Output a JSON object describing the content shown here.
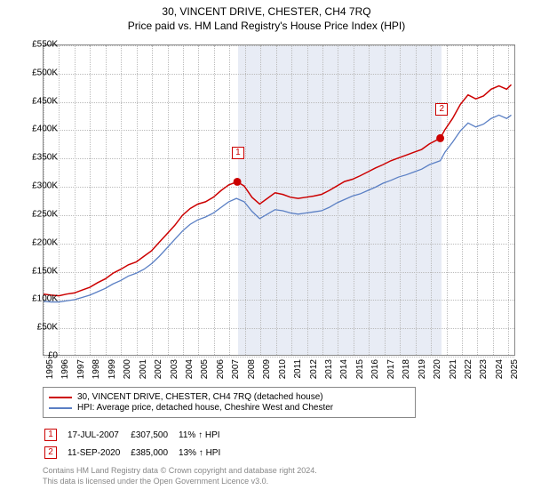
{
  "title": "30, VINCENT DRIVE, CHESTER, CH4 7RQ",
  "subtitle": "Price paid vs. HM Land Registry's House Price Index (HPI)",
  "chart": {
    "type": "line",
    "background_color": "#ffffff",
    "grid_color": "#bbbbbb",
    "border_color": "#888888",
    "shaded_band_color": "#e8ecf5",
    "xlim": [
      1995,
      2025.5
    ],
    "ylim": [
      0,
      550
    ],
    "y_ticks": [
      0,
      50,
      100,
      150,
      200,
      250,
      300,
      350,
      400,
      450,
      500,
      550
    ],
    "y_tick_labels": [
      "£0",
      "£50K",
      "£100K",
      "£150K",
      "£200K",
      "£250K",
      "£300K",
      "£350K",
      "£400K",
      "£450K",
      "£500K",
      "£550K"
    ],
    "x_ticks": [
      1995,
      1996,
      1997,
      1998,
      1999,
      2000,
      2001,
      2002,
      2003,
      2004,
      2005,
      2006,
      2007,
      2008,
      2009,
      2010,
      2011,
      2012,
      2013,
      2014,
      2015,
      2016,
      2017,
      2018,
      2019,
      2020,
      2021,
      2022,
      2023,
      2024,
      2025
    ],
    "shaded_band": {
      "x_from": 2007.55,
      "x_to": 2020.7
    },
    "series": [
      {
        "name": "property",
        "label": "30, VINCENT DRIVE, CHESTER, CH4 7RQ (detached house)",
        "color": "#cc0000",
        "line_width": 1.5,
        "points": [
          [
            1995,
            108
          ],
          [
            1995.5,
            106
          ],
          [
            1996,
            105
          ],
          [
            1996.5,
            108
          ],
          [
            1997,
            110
          ],
          [
            1997.5,
            115
          ],
          [
            1998,
            120
          ],
          [
            1998.5,
            128
          ],
          [
            1999,
            135
          ],
          [
            1999.5,
            145
          ],
          [
            2000,
            152
          ],
          [
            2000.5,
            160
          ],
          [
            2001,
            165
          ],
          [
            2001.5,
            175
          ],
          [
            2002,
            185
          ],
          [
            2002.5,
            200
          ],
          [
            2003,
            215
          ],
          [
            2003.5,
            230
          ],
          [
            2004,
            248
          ],
          [
            2004.5,
            260
          ],
          [
            2005,
            268
          ],
          [
            2005.5,
            272
          ],
          [
            2006,
            280
          ],
          [
            2006.5,
            292
          ],
          [
            2007,
            302
          ],
          [
            2007.55,
            307.5
          ],
          [
            2008,
            300
          ],
          [
            2008.5,
            280
          ],
          [
            2009,
            268
          ],
          [
            2009.5,
            278
          ],
          [
            2010,
            288
          ],
          [
            2010.5,
            285
          ],
          [
            2011,
            280
          ],
          [
            2011.5,
            278
          ],
          [
            2012,
            280
          ],
          [
            2012.5,
            282
          ],
          [
            2013,
            285
          ],
          [
            2013.5,
            292
          ],
          [
            2014,
            300
          ],
          [
            2014.5,
            308
          ],
          [
            2015,
            312
          ],
          [
            2015.5,
            318
          ],
          [
            2016,
            325
          ],
          [
            2016.5,
            332
          ],
          [
            2017,
            338
          ],
          [
            2017.5,
            345
          ],
          [
            2018,
            350
          ],
          [
            2018.5,
            355
          ],
          [
            2019,
            360
          ],
          [
            2019.5,
            365
          ],
          [
            2020,
            375
          ],
          [
            2020.7,
            385
          ],
          [
            2021,
            400
          ],
          [
            2021.5,
            420
          ],
          [
            2022,
            445
          ],
          [
            2022.5,
            462
          ],
          [
            2023,
            455
          ],
          [
            2023.5,
            460
          ],
          [
            2024,
            472
          ],
          [
            2024.5,
            478
          ],
          [
            2025,
            472
          ],
          [
            2025.3,
            480
          ]
        ]
      },
      {
        "name": "hpi",
        "label": "HPI: Average price, detached house, Cheshire West and Chester",
        "color": "#5a7fc4",
        "line_width": 1.3,
        "points": [
          [
            1995,
            95
          ],
          [
            1995.5,
            94
          ],
          [
            1996,
            94
          ],
          [
            1996.5,
            96
          ],
          [
            1997,
            98
          ],
          [
            1997.5,
            102
          ],
          [
            1998,
            106
          ],
          [
            1998.5,
            112
          ],
          [
            1999,
            118
          ],
          [
            1999.5,
            126
          ],
          [
            2000,
            132
          ],
          [
            2000.5,
            140
          ],
          [
            2001,
            145
          ],
          [
            2001.5,
            152
          ],
          [
            2002,
            162
          ],
          [
            2002.5,
            175
          ],
          [
            2003,
            190
          ],
          [
            2003.5,
            205
          ],
          [
            2004,
            220
          ],
          [
            2004.5,
            232
          ],
          [
            2005,
            240
          ],
          [
            2005.5,
            245
          ],
          [
            2006,
            252
          ],
          [
            2006.5,
            262
          ],
          [
            2007,
            272
          ],
          [
            2007.5,
            278
          ],
          [
            2008,
            272
          ],
          [
            2008.5,
            255
          ],
          [
            2009,
            242
          ],
          [
            2009.5,
            250
          ],
          [
            2010,
            258
          ],
          [
            2010.5,
            256
          ],
          [
            2011,
            252
          ],
          [
            2011.5,
            250
          ],
          [
            2012,
            252
          ],
          [
            2012.5,
            254
          ],
          [
            2013,
            256
          ],
          [
            2013.5,
            262
          ],
          [
            2014,
            270
          ],
          [
            2014.5,
            276
          ],
          [
            2015,
            282
          ],
          [
            2015.5,
            286
          ],
          [
            2016,
            292
          ],
          [
            2016.5,
            298
          ],
          [
            2017,
            305
          ],
          [
            2017.5,
            310
          ],
          [
            2018,
            316
          ],
          [
            2018.5,
            320
          ],
          [
            2019,
            325
          ],
          [
            2019.5,
            330
          ],
          [
            2020,
            338
          ],
          [
            2020.7,
            345
          ],
          [
            2021,
            360
          ],
          [
            2021.5,
            378
          ],
          [
            2022,
            398
          ],
          [
            2022.5,
            412
          ],
          [
            2023,
            405
          ],
          [
            2023.5,
            410
          ],
          [
            2024,
            420
          ],
          [
            2024.5,
            426
          ],
          [
            2025,
            420
          ],
          [
            2025.3,
            426
          ]
        ]
      }
    ],
    "markers": [
      {
        "id": "1",
        "x": 2007.55,
        "y": 307.5
      },
      {
        "id": "2",
        "x": 2020.7,
        "y": 385
      }
    ],
    "marker_box_offset_y": -40
  },
  "legend": {
    "rows": [
      {
        "color": "#cc0000",
        "label": "30, VINCENT DRIVE, CHESTER, CH4 7RQ (detached house)"
      },
      {
        "color": "#5a7fc4",
        "label": "HPI: Average price, detached house, Cheshire West and Chester"
      }
    ]
  },
  "transactions": [
    {
      "id": "1",
      "date": "17-JUL-2007",
      "price": "£307,500",
      "delta": "11% ↑ HPI"
    },
    {
      "id": "2",
      "date": "11-SEP-2020",
      "price": "£385,000",
      "delta": "13% ↑ HPI"
    }
  ],
  "footer_line1": "Contains HM Land Registry data © Crown copyright and database right 2024.",
  "footer_line2": "This data is licensed under the Open Government Licence v3.0."
}
